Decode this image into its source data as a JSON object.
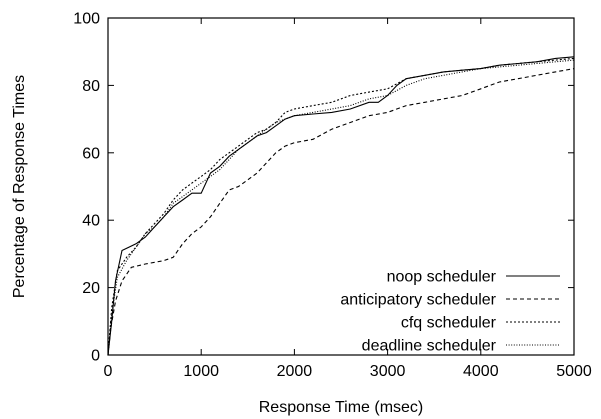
{
  "chart_data": {
    "type": "line",
    "title": "",
    "xlabel": "Response Time (msec)",
    "ylabel": "Percentage of Response Times",
    "xlim": [
      0,
      5000
    ],
    "ylim": [
      0,
      100
    ],
    "xticks": [
      0,
      1000,
      2000,
      3000,
      4000,
      5000
    ],
    "yticks": [
      0,
      20,
      40,
      60,
      80,
      100
    ],
    "grid": false,
    "legend_position": "bottom-right",
    "series": [
      {
        "name": "noop scheduler",
        "style": "solid",
        "points": [
          [
            0,
            0
          ],
          [
            40,
            10
          ],
          [
            80,
            22
          ],
          [
            150,
            31
          ],
          [
            300,
            33
          ],
          [
            400,
            35
          ],
          [
            500,
            38
          ],
          [
            600,
            41
          ],
          [
            700,
            44
          ],
          [
            800,
            46
          ],
          [
            900,
            48
          ],
          [
            1000,
            48
          ],
          [
            1100,
            54
          ],
          [
            1200,
            56
          ],
          [
            1300,
            59
          ],
          [
            1400,
            61
          ],
          [
            1500,
            63
          ],
          [
            1600,
            65
          ],
          [
            1700,
            66
          ],
          [
            1800,
            68
          ],
          [
            1900,
            70
          ],
          [
            2000,
            71
          ],
          [
            2200,
            71.5
          ],
          [
            2400,
            72
          ],
          [
            2600,
            73
          ],
          [
            2800,
            75
          ],
          [
            2900,
            75
          ],
          [
            3000,
            77
          ],
          [
            3100,
            80
          ],
          [
            3200,
            82
          ],
          [
            3400,
            83
          ],
          [
            3600,
            84
          ],
          [
            3800,
            84.5
          ],
          [
            4000,
            85
          ],
          [
            4200,
            86
          ],
          [
            4400,
            86.5
          ],
          [
            4600,
            87
          ],
          [
            4800,
            88
          ],
          [
            5000,
            88.5
          ]
        ]
      },
      {
        "name": "anticipatory scheduler",
        "style": "dashed",
        "points": [
          [
            0,
            0
          ],
          [
            30,
            8
          ],
          [
            80,
            16
          ],
          [
            150,
            22
          ],
          [
            250,
            26
          ],
          [
            400,
            27
          ],
          [
            600,
            28
          ],
          [
            700,
            29
          ],
          [
            800,
            33
          ],
          [
            900,
            36
          ],
          [
            1000,
            38
          ],
          [
            1100,
            41
          ],
          [
            1200,
            45
          ],
          [
            1300,
            49
          ],
          [
            1400,
            50
          ],
          [
            1500,
            52
          ],
          [
            1600,
            54
          ],
          [
            1700,
            57
          ],
          [
            1800,
            60
          ],
          [
            1900,
            62
          ],
          [
            2000,
            63
          ],
          [
            2200,
            64
          ],
          [
            2400,
            67
          ],
          [
            2600,
            69
          ],
          [
            2800,
            71
          ],
          [
            3000,
            72
          ],
          [
            3200,
            74
          ],
          [
            3400,
            75
          ],
          [
            3600,
            76
          ],
          [
            3800,
            77
          ],
          [
            4000,
            79
          ],
          [
            4200,
            81
          ],
          [
            4400,
            82
          ],
          [
            4600,
            83
          ],
          [
            4800,
            84
          ],
          [
            5000,
            85
          ]
        ]
      },
      {
        "name": "cfq scheduler",
        "style": "dotted",
        "points": [
          [
            0,
            0
          ],
          [
            40,
            14
          ],
          [
            100,
            25
          ],
          [
            200,
            29
          ],
          [
            300,
            32
          ],
          [
            400,
            36
          ],
          [
            500,
            39
          ],
          [
            600,
            42
          ],
          [
            700,
            46
          ],
          [
            800,
            49
          ],
          [
            900,
            51
          ],
          [
            1000,
            53
          ],
          [
            1100,
            55
          ],
          [
            1200,
            58
          ],
          [
            1300,
            60
          ],
          [
            1400,
            62
          ],
          [
            1500,
            64
          ],
          [
            1600,
            66
          ],
          [
            1700,
            67
          ],
          [
            1800,
            69
          ],
          [
            1900,
            72
          ],
          [
            2000,
            73
          ],
          [
            2200,
            74
          ],
          [
            2400,
            75
          ],
          [
            2600,
            77
          ],
          [
            2800,
            78
          ],
          [
            3000,
            79
          ],
          [
            3200,
            82
          ],
          [
            3400,
            83
          ],
          [
            3600,
            84
          ],
          [
            3800,
            84.5
          ],
          [
            4000,
            85
          ],
          [
            4200,
            86
          ],
          [
            4400,
            86.5
          ],
          [
            4600,
            87
          ],
          [
            4800,
            87.5
          ],
          [
            5000,
            88
          ]
        ]
      },
      {
        "name": "deadline scheduler",
        "style": "fine-dotted",
        "points": [
          [
            0,
            0
          ],
          [
            40,
            12
          ],
          [
            100,
            23
          ],
          [
            200,
            28
          ],
          [
            300,
            32
          ],
          [
            400,
            36
          ],
          [
            500,
            38
          ],
          [
            600,
            41
          ],
          [
            700,
            45
          ],
          [
            800,
            47
          ],
          [
            900,
            49
          ],
          [
            1000,
            51
          ],
          [
            1100,
            53
          ],
          [
            1200,
            55
          ],
          [
            1300,
            58
          ],
          [
            1400,
            61
          ],
          [
            1500,
            63
          ],
          [
            1600,
            65
          ],
          [
            1700,
            67
          ],
          [
            1800,
            69
          ],
          [
            1900,
            70
          ],
          [
            2000,
            71
          ],
          [
            2200,
            72
          ],
          [
            2400,
            73
          ],
          [
            2600,
            74
          ],
          [
            2800,
            76
          ],
          [
            3000,
            77
          ],
          [
            3200,
            80
          ],
          [
            3400,
            82
          ],
          [
            3600,
            83
          ],
          [
            3800,
            84
          ],
          [
            4000,
            85
          ],
          [
            4200,
            85.5
          ],
          [
            4400,
            86
          ],
          [
            4600,
            86.5
          ],
          [
            4800,
            87
          ],
          [
            5000,
            87.5
          ]
        ]
      }
    ]
  }
}
